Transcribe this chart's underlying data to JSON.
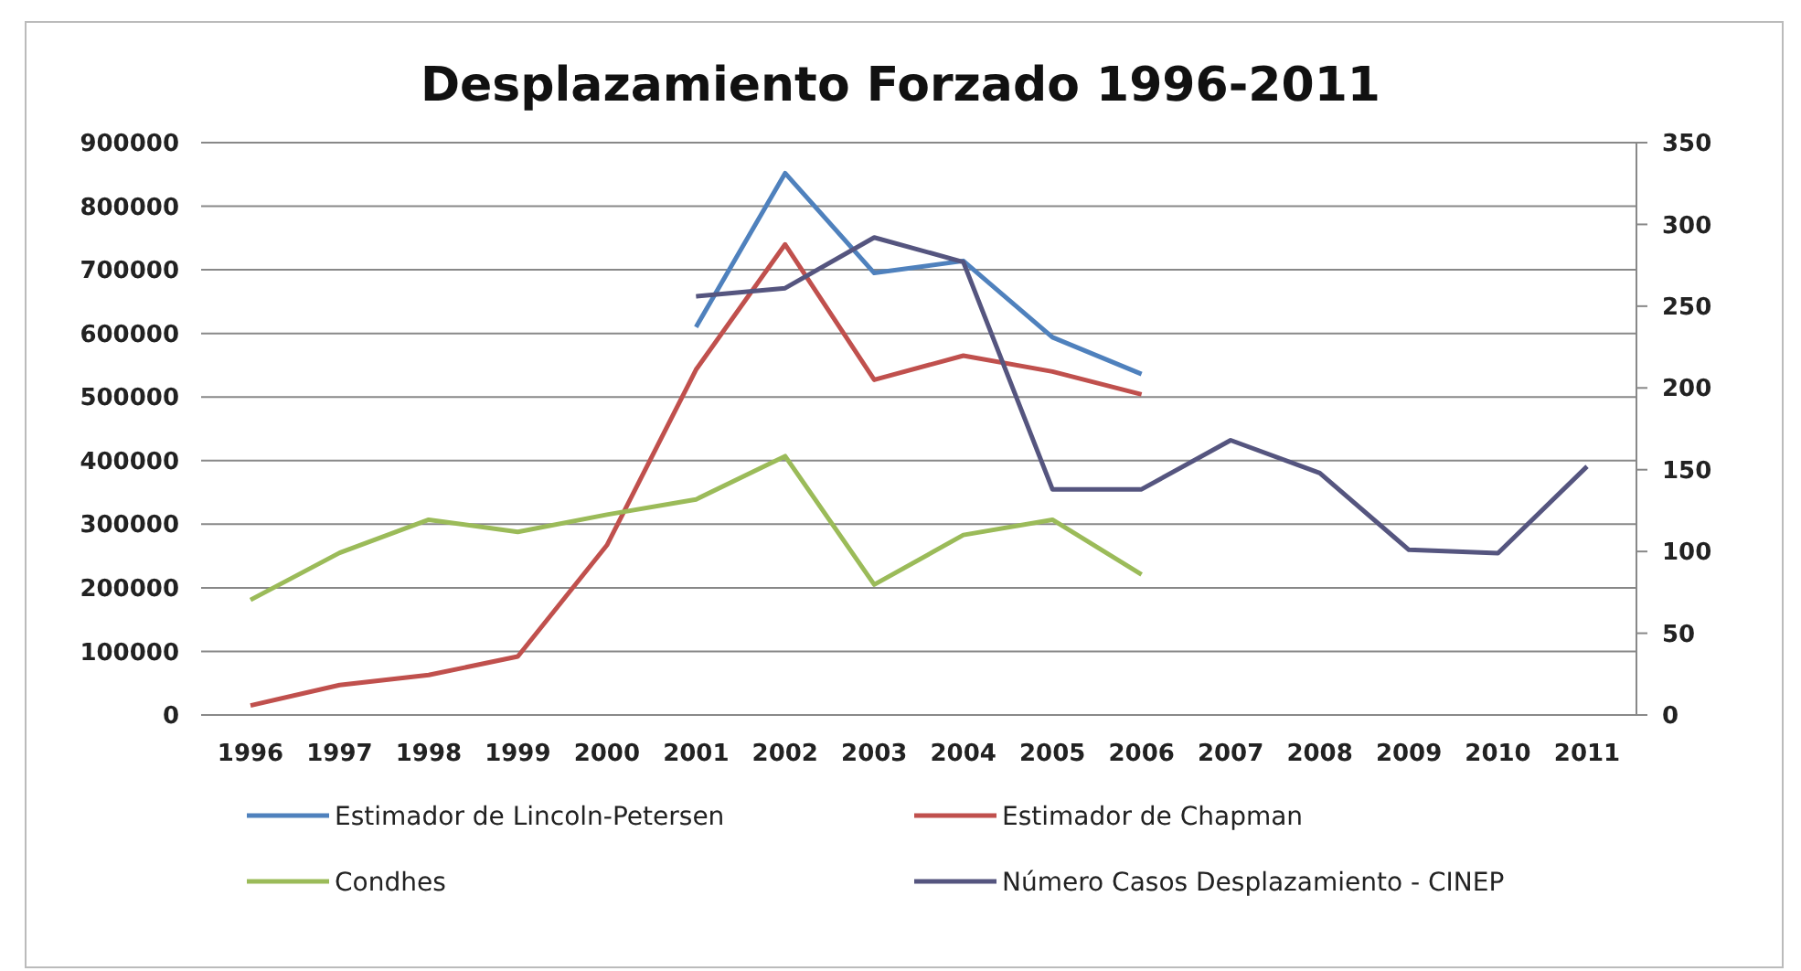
{
  "chart_data": {
    "type": "line",
    "title": "Desplazamiento Forzado 1996-2011",
    "categories": [
      "1996",
      "1997",
      "1998",
      "1999",
      "2000",
      "2001",
      "2002",
      "2003",
      "2004",
      "2005",
      "2006",
      "2007",
      "2008",
      "2009",
      "2010",
      "2011"
    ],
    "series": [
      {
        "name": "Estimador de Lincoln-Petersen",
        "color": "#4f81bd",
        "values": [
          null,
          null,
          null,
          null,
          null,
          610000,
          852000,
          695000,
          714000,
          594000,
          536000,
          null,
          null,
          null,
          null,
          null
        ]
      },
      {
        "name": "Estimador de Chapman",
        "color": "#c0504d",
        "values": [
          15000,
          47000,
          63000,
          92000,
          267000,
          543000,
          740000,
          527000,
          565000,
          540000,
          504000,
          null,
          null,
          null,
          null,
          null
        ]
      },
      {
        "name": "Condhes",
        "color": "#9bbb59",
        "values": [
          181000,
          255000,
          307000,
          288000,
          315000,
          339000,
          407000,
          205000,
          283000,
          307000,
          221000,
          null,
          null,
          null,
          null,
          null
        ]
      },
      {
        "name": "Número Casos Desplazamiento - CINEP",
        "color": "#55557f",
        "axis": "y2",
        "values": [
          null,
          null,
          null,
          null,
          null,
          256,
          261,
          292,
          277,
          138,
          138,
          168,
          148,
          101,
          99,
          152
        ]
      }
    ],
    "ylim": [
      0,
      900000
    ],
    "yticks": [
      0,
      100000,
      200000,
      300000,
      400000,
      500000,
      600000,
      700000,
      800000,
      900000
    ],
    "y2lim": [
      0,
      350
    ],
    "y2ticks": [
      0,
      50,
      100,
      150,
      200,
      250,
      300,
      350
    ],
    "grid": "y",
    "legend": "bottom",
    "marker": "none",
    "line_style": "solid"
  }
}
